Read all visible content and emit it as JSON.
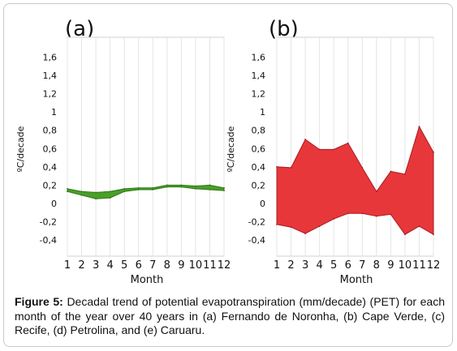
{
  "caption": {
    "label": "Figure 5:",
    "text": "Decadal trend of potential evapotranspiration (mm/decade) (PET) for each month of the year over 40 years in (a) Fernando de Noronha, (b) Cape Verde, (c) Recife, (d) Petrolina, and (e) Caruaru."
  },
  "chart_data": [
    {
      "type": "area",
      "panel_label": "(a)",
      "ylabel": "ºC/decade",
      "xlabel": "Month",
      "x": [
        1,
        2,
        3,
        4,
        5,
        6,
        7,
        8,
        9,
        10,
        11,
        12
      ],
      "x_tick_labels": [
        "1",
        "2",
        "3",
        "4",
        "5",
        "6",
        "7",
        "8",
        "9",
        "10",
        "11",
        "12"
      ],
      "y_tick_labels": [
        "1,6",
        "1,4",
        "1,2",
        "1",
        "0,8",
        "0,6",
        "0,4",
        "0,2",
        "0",
        "-0,2",
        "-0,4"
      ],
      "y_ticks": [
        1.6,
        1.4,
        1.2,
        1.0,
        0.8,
        0.6,
        0.4,
        0.2,
        0,
        -0.2,
        -0.4
      ],
      "ylim": [
        -0.48,
        1.72
      ],
      "xlim": [
        1,
        12
      ],
      "grid": true,
      "color": "#4a9e2a",
      "edge_color": "#2e7a14",
      "upper": [
        0.16,
        0.13,
        0.12,
        0.13,
        0.16,
        0.17,
        0.17,
        0.2,
        0.2,
        0.19,
        0.2,
        0.17
      ],
      "lower": [
        0.13,
        0.09,
        0.05,
        0.06,
        0.13,
        0.15,
        0.15,
        0.18,
        0.18,
        0.16,
        0.15,
        0.14
      ]
    },
    {
      "type": "area",
      "panel_label": "(b)",
      "ylabel": "ºC/decade",
      "xlabel": "Month",
      "x": [
        1,
        2,
        3,
        4,
        5,
        6,
        7,
        8,
        9,
        10,
        11,
        12
      ],
      "x_tick_labels": [
        "1",
        "2",
        "3",
        "4",
        "5",
        "6",
        "7",
        "8",
        "9",
        "10",
        "11",
        "12"
      ],
      "y_tick_labels": [
        "1,6",
        "1,4",
        "1,2",
        "1",
        "0,8",
        "0,6",
        "0,4",
        "0,2",
        "0",
        "-0,2",
        "-0,4"
      ],
      "y_ticks": [
        1.6,
        1.4,
        1.2,
        1.0,
        0.8,
        0.6,
        0.4,
        0.2,
        0,
        -0.2,
        -0.4
      ],
      "ylim": [
        -0.48,
        1.72
      ],
      "xlim": [
        1,
        12
      ],
      "grid": true,
      "color": "#e8373a",
      "edge_color": "#a81c20",
      "upper": [
        0.4,
        0.39,
        0.7,
        0.59,
        0.59,
        0.66,
        0.39,
        0.13,
        0.35,
        0.32,
        0.84,
        0.56
      ],
      "lower": [
        -0.23,
        -0.26,
        -0.33,
        -0.25,
        -0.17,
        -0.11,
        -0.11,
        -0.14,
        -0.12,
        -0.34,
        -0.25,
        -0.34
      ]
    }
  ]
}
